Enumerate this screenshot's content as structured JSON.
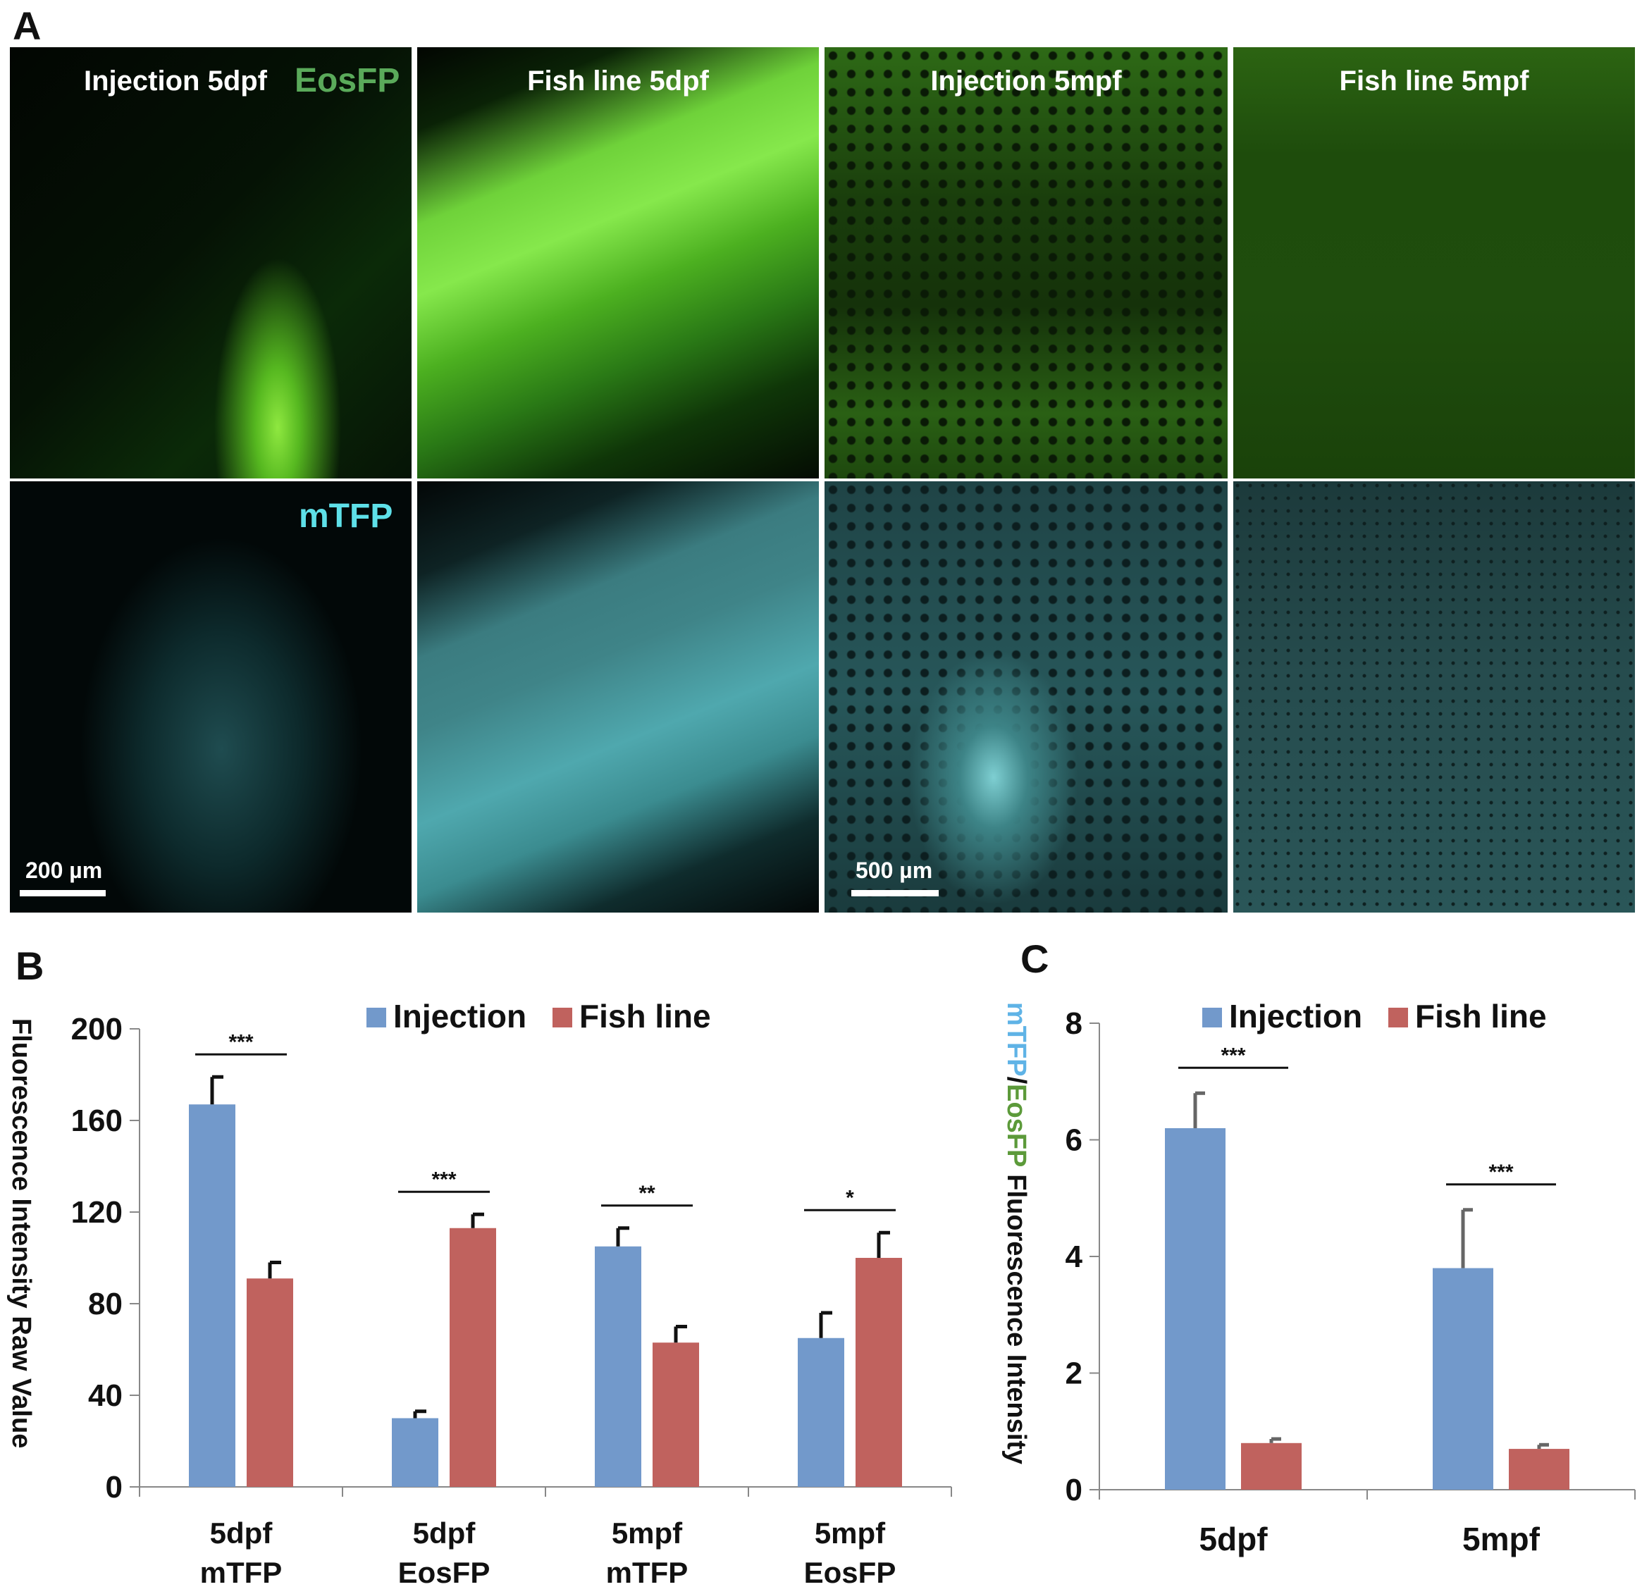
{
  "panel_a": {
    "letter": "A",
    "columns": [
      {
        "title": "Injection 5dpf",
        "channel_label": "EosFP",
        "scale_label": "200 µm"
      },
      {
        "title": "Fish line 5dpf"
      },
      {
        "title": "Injection 5mpf",
        "scale_label": "500 µm"
      },
      {
        "title": "Fish line 5mpf"
      }
    ],
    "rows": [
      {
        "channel": "EosFP",
        "color": "#5aaa5a"
      },
      {
        "channel": "mTFP",
        "color": "#5ee0e8"
      }
    ],
    "mtfp_label": "mTFP"
  },
  "chart_data": [
    {
      "panel": "B",
      "type": "bar",
      "categories": [
        [
          "5dpf",
          "mTFP"
        ],
        [
          "5dpf",
          "EosFP"
        ],
        [
          "5mpf",
          "mTFP"
        ],
        [
          "5mpf",
          "EosFP"
        ]
      ],
      "series": [
        {
          "name": "Injection",
          "color": "#7299cb",
          "values": [
            167,
            30,
            105,
            65
          ],
          "errors": [
            12,
            3,
            8,
            11
          ]
        },
        {
          "name": "Fish line",
          "color": "#c0625e",
          "values": [
            91,
            113,
            63,
            100
          ],
          "errors": [
            7,
            6,
            7,
            11
          ]
        }
      ],
      "significance": [
        "***",
        "***",
        "**",
        "*"
      ],
      "ylabel": "Fluorescence Intensity Raw Value",
      "ylim": [
        0,
        200
      ],
      "yticks": [
        0,
        40,
        80,
        120,
        160,
        200
      ],
      "legend": "top"
    },
    {
      "panel": "C",
      "type": "bar",
      "categories": [
        [
          "5dpf"
        ],
        [
          "5mpf"
        ]
      ],
      "series": [
        {
          "name": "Injection",
          "color": "#7299cb",
          "values": [
            6.2,
            3.8
          ],
          "errors": [
            0.6,
            1.0
          ]
        },
        {
          "name": "Fish line",
          "color": "#c0625e",
          "values": [
            0.8,
            0.7
          ],
          "errors": [
            0.07,
            0.07
          ]
        }
      ],
      "significance": [
        "***",
        "***"
      ],
      "ylabel_parts": [
        {
          "text": "mTFP",
          "color": "#5fb3e6"
        },
        {
          "text": "/",
          "color": "#111111"
        },
        {
          "text": "EosFP",
          "color": "#5c9a3a"
        },
        {
          "text": " Fluorescence Intensity",
          "color": "#111111"
        }
      ],
      "ylim": [
        0,
        8
      ],
      "yticks": [
        0,
        2,
        4,
        6,
        8
      ],
      "legend": "top"
    }
  ]
}
